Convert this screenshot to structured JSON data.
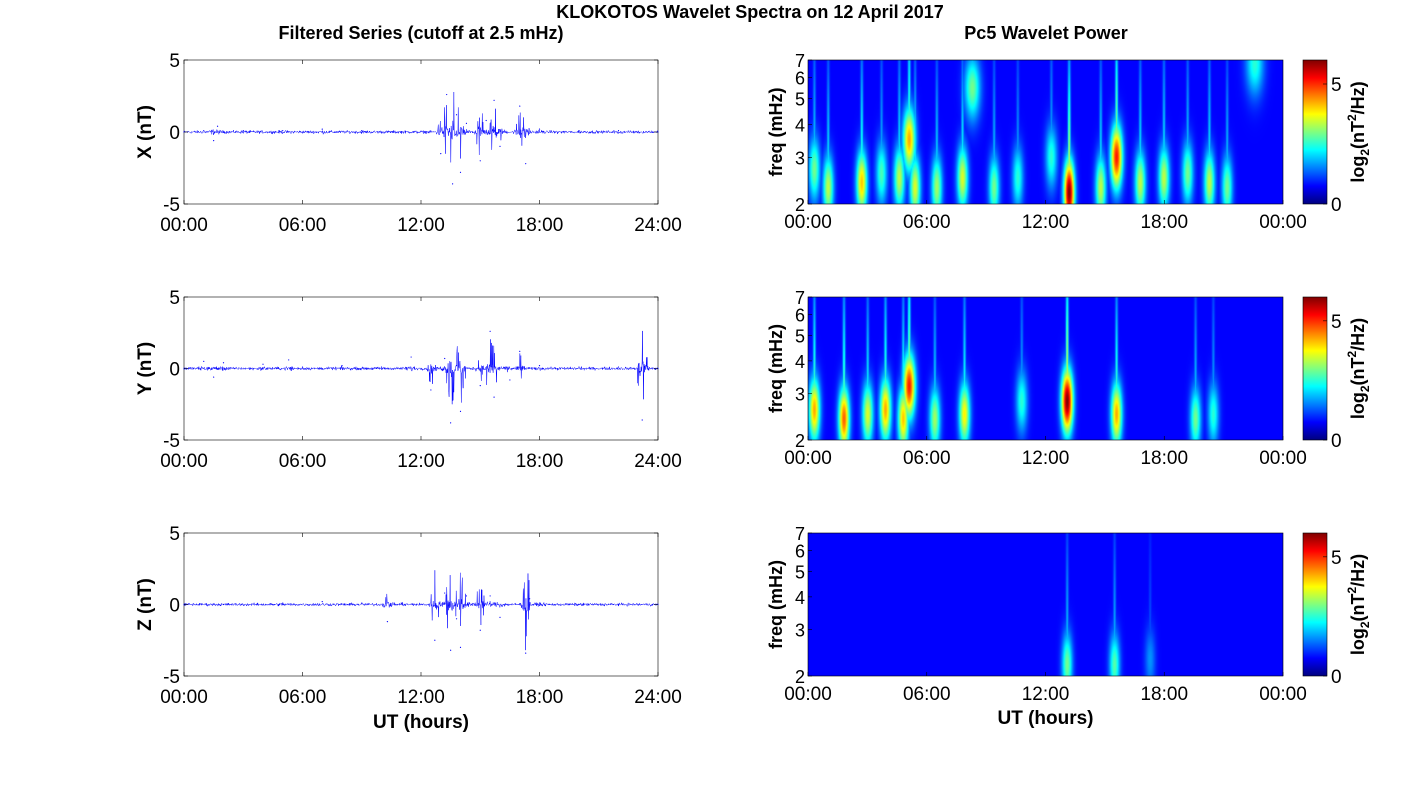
{
  "figure": {
    "suptitle": "KLOKOTOS Wavelet Spectra on 12 April 2017",
    "left_column_title": "Filtered Series (cutoff at 2.5 mHz)",
    "right_column_title": "Pc5 Wavelet Power"
  },
  "chart_data": [
    {
      "type": "line",
      "panel": "X-filtered",
      "ylabel": "X (nT)",
      "xlabel": "",
      "xlim": [
        0,
        24
      ],
      "ylim": [
        -5,
        5
      ],
      "xticks": [
        "00:00",
        "06:00",
        "12:00",
        "18:00",
        "24:00"
      ],
      "yticks": [
        "-5",
        "0",
        "5"
      ],
      "line_color": "#0000ff",
      "series": [
        {
          "x": [
            0,
            1,
            1.5,
            1.7,
            2,
            3,
            5,
            7,
            9,
            11,
            13,
            13.3,
            13.6,
            13.8,
            14,
            14.3,
            15,
            15.3,
            15.7,
            16,
            17,
            17.3,
            18,
            20,
            22,
            24
          ],
          "y": [
            0,
            0.1,
            -0.6,
            0.4,
            0,
            0.1,
            0.1,
            0.2,
            0.1,
            0,
            -1.5,
            2.6,
            -3.6,
            1.2,
            -2.8,
            0.6,
            -2.0,
            0.8,
            2.2,
            -1.0,
            1.8,
            -2.2,
            0.2,
            0.1,
            0.1,
            0
          ]
        }
      ]
    },
    {
      "type": "line",
      "panel": "Y-filtered",
      "ylabel": "Y (nT)",
      "xlabel": "",
      "xlim": [
        0,
        24
      ],
      "ylim": [
        -5,
        5
      ],
      "xticks": [
        "00:00",
        "06:00",
        "12:00",
        "18:00",
        "24:00"
      ],
      "yticks": [
        "-5",
        "0",
        "5"
      ],
      "line_color": "#0000ff",
      "series": [
        {
          "x": [
            0,
            1,
            1.5,
            2,
            4,
            5.3,
            6,
            8,
            10,
            11.5,
            12.5,
            13.2,
            13.5,
            13.8,
            14,
            15,
            15.5,
            15.7,
            16.5,
            17,
            18,
            20,
            22,
            23.2,
            23.4,
            24
          ],
          "y": [
            0,
            0.5,
            -0.6,
            0.4,
            0.3,
            0.6,
            0.1,
            0.2,
            0.1,
            0.8,
            -1.5,
            0.7,
            -3.8,
            0.2,
            -3.0,
            -1.2,
            2.6,
            -2.0,
            -0.8,
            1.2,
            0.2,
            0.1,
            0.1,
            -3.6,
            0.2,
            0
          ]
        }
      ]
    },
    {
      "type": "line",
      "panel": "Z-filtered",
      "ylabel": "Z (nT)",
      "xlabel": "UT (hours)",
      "xlim": [
        0,
        24
      ],
      "ylim": [
        -5,
        5
      ],
      "xticks": [
        "00:00",
        "06:00",
        "12:00",
        "18:00",
        "24:00"
      ],
      "yticks": [
        "-5",
        "0",
        "5"
      ],
      "line_color": "#0000ff",
      "series": [
        {
          "x": [
            0,
            2,
            5,
            7,
            9,
            10.3,
            11,
            12.7,
            13.2,
            13.5,
            13.8,
            14,
            14.3,
            15,
            15.5,
            16,
            17.3,
            17.5,
            18,
            20,
            22,
            24
          ],
          "y": [
            0,
            0,
            0.1,
            0.2,
            0.1,
            -1.2,
            0.1,
            -2.5,
            0.8,
            -3.2,
            -1.0,
            -3.0,
            0.6,
            -1.8,
            0.6,
            -0.9,
            -3.4,
            0.4,
            0.1,
            0,
            0,
            0
          ]
        }
      ]
    },
    {
      "type": "heatmap",
      "panel": "X-wavelet",
      "ylabel": "freq (mHz)",
      "xlabel": "",
      "xlim": [
        0,
        24
      ],
      "ylim": [
        2,
        7
      ],
      "yscale": "log",
      "xticks": [
        "00:00",
        "06:00",
        "12:00",
        "18:00",
        "00:00"
      ],
      "yticks": [
        "2",
        "3",
        "4",
        "5",
        "6",
        "7"
      ],
      "colormap": "jet",
      "colorbar": {
        "label_base": "log",
        "label_sub": "2",
        "label_mid": "(nT",
        "label_sup": "2",
        "label_end": "/Hz)",
        "range": [
          0,
          6
        ],
        "ticks": [
          "0",
          "5"
        ]
      },
      "blobs": [
        {
          "t": 0.3,
          "f": 2.7,
          "p": 2.5
        },
        {
          "t": 1.0,
          "f": 2.3,
          "p": 3.0
        },
        {
          "t": 2.7,
          "f": 2.4,
          "p": 3.8
        },
        {
          "t": 3.7,
          "f": 2.6,
          "p": 2.2
        },
        {
          "t": 4.6,
          "f": 2.5,
          "p": 3.0
        },
        {
          "t": 5.1,
          "f": 3.5,
          "p": 4.0
        },
        {
          "t": 5.4,
          "f": 2.3,
          "p": 3.2
        },
        {
          "t": 6.5,
          "f": 2.3,
          "p": 2.8
        },
        {
          "t": 7.8,
          "f": 2.5,
          "p": 3.2
        },
        {
          "t": 8.3,
          "f": 5.5,
          "p": 2.5
        },
        {
          "t": 9.4,
          "f": 2.3,
          "p": 2.5
        },
        {
          "t": 10.6,
          "f": 2.5,
          "p": 2.0
        },
        {
          "t": 12.3,
          "f": 3.0,
          "p": 2.0
        },
        {
          "t": 13.2,
          "f": 2.2,
          "p": 6.0
        },
        {
          "t": 14.8,
          "f": 2.3,
          "p": 3.0
        },
        {
          "t": 15.6,
          "f": 3.0,
          "p": 5.0
        },
        {
          "t": 16.8,
          "f": 2.4,
          "p": 3.0
        },
        {
          "t": 18.0,
          "f": 2.5,
          "p": 3.0
        },
        {
          "t": 19.2,
          "f": 2.6,
          "p": 2.5
        },
        {
          "t": 20.3,
          "f": 2.4,
          "p": 3.0
        },
        {
          "t": 21.2,
          "f": 2.3,
          "p": 2.5
        },
        {
          "t": 22.6,
          "f": 6.8,
          "p": 2.0
        }
      ]
    },
    {
      "type": "heatmap",
      "panel": "Y-wavelet",
      "ylabel": "freq (mHz)",
      "xlabel": "",
      "xlim": [
        0,
        24
      ],
      "ylim": [
        2,
        7
      ],
      "yscale": "log",
      "xticks": [
        "00:00",
        "06:00",
        "12:00",
        "18:00",
        "00:00"
      ],
      "yticks": [
        "2",
        "3",
        "4",
        "5",
        "6",
        "7"
      ],
      "colormap": "jet",
      "colorbar": {
        "label_base": "log",
        "label_sub": "2",
        "label_mid": "(nT",
        "label_sup": "2",
        "label_end": "/Hz)",
        "range": [
          0,
          6
        ],
        "ticks": [
          "0",
          "5"
        ]
      },
      "blobs": [
        {
          "t": 0.3,
          "f": 2.6,
          "p": 4.0
        },
        {
          "t": 1.8,
          "f": 2.4,
          "p": 4.5
        },
        {
          "t": 3.0,
          "f": 2.5,
          "p": 3.2
        },
        {
          "t": 3.9,
          "f": 2.6,
          "p": 4.0
        },
        {
          "t": 4.8,
          "f": 2.4,
          "p": 3.8
        },
        {
          "t": 5.1,
          "f": 3.2,
          "p": 5.0
        },
        {
          "t": 6.4,
          "f": 2.4,
          "p": 2.8
        },
        {
          "t": 7.9,
          "f": 2.5,
          "p": 3.5
        },
        {
          "t": 10.8,
          "f": 2.8,
          "p": 2.0
        },
        {
          "t": 13.1,
          "f": 2.8,
          "p": 6.0
        },
        {
          "t": 15.6,
          "f": 2.5,
          "p": 4.0
        },
        {
          "t": 19.6,
          "f": 2.4,
          "p": 2.5
        },
        {
          "t": 20.5,
          "f": 2.5,
          "p": 2.0
        }
      ]
    },
    {
      "type": "heatmap",
      "panel": "Z-wavelet",
      "ylabel": "freq (mHz)",
      "xlabel": "UT (hours)",
      "xlim": [
        0,
        24
      ],
      "ylim": [
        2,
        7
      ],
      "yscale": "log",
      "xticks": [
        "00:00",
        "06:00",
        "12:00",
        "18:00",
        "00:00"
      ],
      "yticks": [
        "2",
        "3",
        "4",
        "5",
        "6",
        "7"
      ],
      "colormap": "jet",
      "colorbar": {
        "label_base": "log",
        "label_sub": "2",
        "label_mid": "(nT",
        "label_sup": "2",
        "label_end": "/Hz)",
        "range": [
          0,
          6
        ],
        "ticks": [
          "0",
          "5"
        ]
      },
      "blobs": [
        {
          "t": 13.1,
          "f": 2.2,
          "p": 2.5
        },
        {
          "t": 15.5,
          "f": 2.2,
          "p": 2.3
        },
        {
          "t": 17.3,
          "f": 2.3,
          "p": 1.0
        }
      ]
    }
  ]
}
